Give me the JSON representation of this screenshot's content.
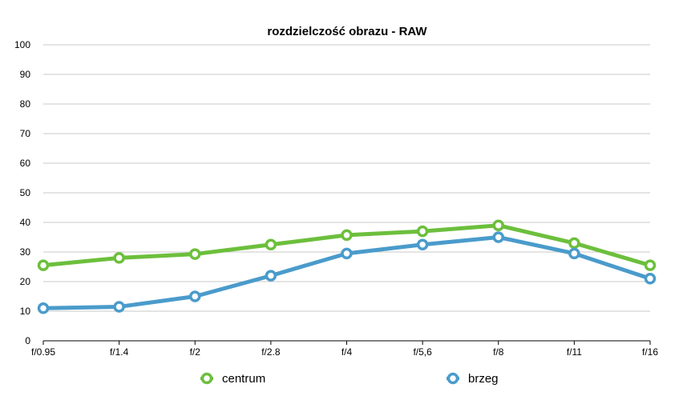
{
  "chart_data": {
    "type": "line",
    "title": "rozdzielczość obrazu - RAW",
    "xlabel": "",
    "ylabel": "",
    "categories": [
      "f/0.95",
      "f/1.4",
      "f/2",
      "f/2.8",
      "f/4",
      "f/5,6",
      "f/8",
      "f/11",
      "f/16"
    ],
    "ylim": [
      0,
      100
    ],
    "yticks": [
      0,
      10,
      20,
      30,
      40,
      50,
      60,
      70,
      80,
      90,
      100
    ],
    "grid": true,
    "legend_position": "bottom",
    "series": [
      {
        "name": "centrum",
        "color": "#6cbf3c",
        "values": [
          25.5,
          28,
          29.3,
          32.5,
          35.7,
          37,
          39,
          33,
          25.5
        ]
      },
      {
        "name": "brzeg",
        "color": "#4a9bcb",
        "values": [
          11,
          11.5,
          15,
          22,
          29.5,
          32.5,
          35,
          29.5,
          21
        ]
      }
    ]
  }
}
